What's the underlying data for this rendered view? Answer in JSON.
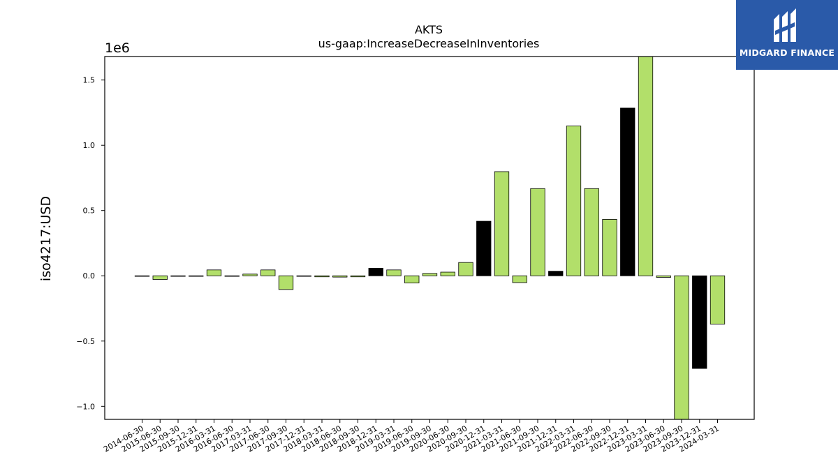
{
  "chart_data": {
    "type": "bar",
    "title": "AKTS",
    "subtitle": "us-gaap:IncreaseDecreaseInInventories",
    "ylabel": "iso4217:USD",
    "xlabel": "",
    "scale_label": "1e6",
    "scale": 1000000,
    "ylim": [
      -1.1,
      1.68
    ],
    "yticks": [
      -1.0,
      -0.5,
      0.0,
      0.5,
      1.0,
      1.5
    ],
    "ytick_labels": [
      "−1.0",
      "−0.5",
      "0.0",
      "0.5",
      "1.0",
      "1.5"
    ],
    "grid": false,
    "legend": "none",
    "colors": {
      "default": "#b2df6a",
      "highlight": "#000000",
      "edge": "#000000"
    },
    "categories": [
      "2014-06-30",
      "2015-06-30",
      "2015-09-30",
      "2015-12-31",
      "2016-03-31",
      "2016-06-30",
      "2017-03-31",
      "2017-06-30",
      "2017-09-30",
      "2017-12-31",
      "2018-03-31",
      "2018-06-30",
      "2018-09-30",
      "2018-12-31",
      "2019-03-31",
      "2019-06-30",
      "2019-09-30",
      "2020-06-30",
      "2020-09-30",
      "2020-12-31",
      "2021-03-31",
      "2021-06-30",
      "2021-09-30",
      "2021-12-31",
      "2022-03-31",
      "2022-06-30",
      "2022-09-30",
      "2022-12-31",
      "2023-03-31",
      "2023-06-30",
      "2023-09-30",
      "2023-12-31",
      "2024-03-31"
    ],
    "values": [
      -0.003,
      -0.028,
      -0.003,
      -0.003,
      0.045,
      -0.003,
      0.013,
      0.045,
      -0.105,
      -0.003,
      -0.008,
      -0.01,
      -0.008,
      0.058,
      0.045,
      -0.055,
      0.018,
      0.028,
      0.102,
      0.418,
      0.798,
      -0.052,
      0.668,
      0.035,
      1.148,
      0.668,
      0.432,
      1.285,
      1.68,
      -0.012,
      -1.1,
      -0.71,
      -0.37
    ],
    "highlight": [
      false,
      false,
      false,
      false,
      false,
      false,
      false,
      false,
      false,
      false,
      false,
      false,
      false,
      true,
      false,
      false,
      false,
      false,
      false,
      true,
      false,
      false,
      false,
      true,
      false,
      false,
      false,
      true,
      false,
      false,
      false,
      true,
      false
    ]
  },
  "logo": {
    "text": "MIDGARD FINANCE",
    "icon": "midgard-logo-icon"
  }
}
